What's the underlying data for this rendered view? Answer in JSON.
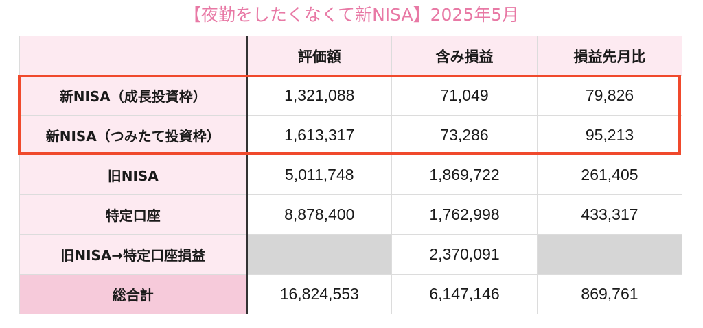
{
  "title": "【夜勤をしたくなくて新NISA】2025年5月",
  "headers": [
    "",
    "評価額",
    "含み損益",
    "損益先月比"
  ],
  "rows": [
    {
      "label": "新NISA（成長投資枠）",
      "valuation": "1,321,088",
      "unrealized": "71,049",
      "mom": "79,826"
    },
    {
      "label": "新NISA（つみたて投資枠）",
      "valuation": "1,613,317",
      "unrealized": "73,286",
      "mom": "95,213"
    },
    {
      "label": "旧NISA",
      "valuation": "5,011,748",
      "unrealized": "1,869,722",
      "mom": "261,405"
    },
    {
      "label": "特定口座",
      "valuation": "8,878,400",
      "unrealized": "1,762,998",
      "mom": "433,317"
    },
    {
      "label": "旧NISA→特定口座損益",
      "valuation": "",
      "unrealized": "2,370,091",
      "mom": ""
    },
    {
      "label": "総合計",
      "valuation": "16,824,553",
      "unrealized": "6,147,146",
      "mom": "869,761"
    }
  ],
  "colors": {
    "title": "#e879a5",
    "header_bg": "#fdeaf1",
    "total_label_bg": "#f6cada",
    "empty_cell": "#d6d6d6",
    "highlight_border": "#f0492c"
  }
}
